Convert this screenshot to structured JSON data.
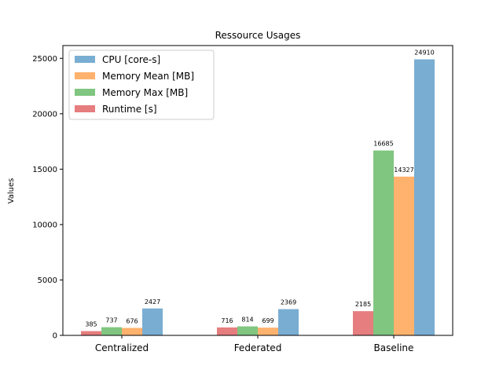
{
  "chart_data": {
    "type": "bar",
    "title": "Ressource Usages",
    "xlabel": "",
    "ylabel": "Values",
    "categories": [
      "Centralized",
      "Federated",
      "Baseline"
    ],
    "ylim": [
      0,
      26155
    ],
    "yticks": [
      0,
      5000,
      10000,
      15000,
      20000,
      25000
    ],
    "grid": false,
    "legend_position": "top-left",
    "series": [
      {
        "name": "Runtime [s]",
        "values": [
          385,
          716,
          2185
        ],
        "color": "#d62728"
      },
      {
        "name": "Memory Max [MB]",
        "values": [
          737,
          814,
          16685
        ],
        "color": "#2ca02c"
      },
      {
        "name": "Memory Mean [MB]",
        "values": [
          676,
          699,
          14327
        ],
        "color": "#ff7f0e"
      },
      {
        "name": "CPU [core-s]",
        "values": [
          2427,
          2369,
          24910
        ],
        "color": "#1f77b4"
      }
    ],
    "legend_order": [
      "CPU [core-s]",
      "Memory Mean [MB]",
      "Memory Max [MB]",
      "Runtime [s]"
    ],
    "bar_opacity": 0.6
  }
}
